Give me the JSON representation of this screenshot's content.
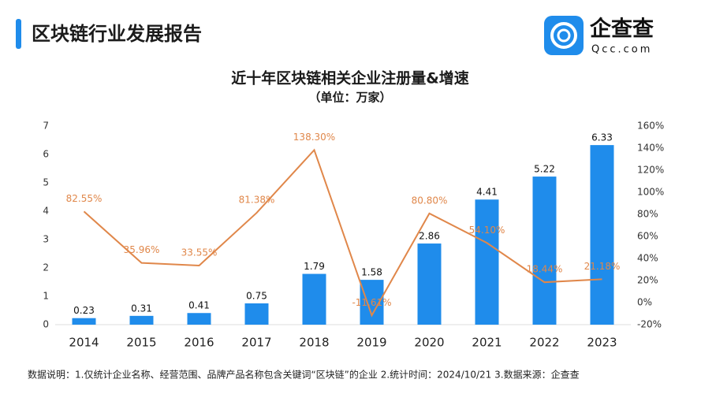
{
  "header": {
    "title": "区块链行业发展报告"
  },
  "logo": {
    "name": "企查查",
    "url": "Qcc.com"
  },
  "chart_data": {
    "type": "bar",
    "title": "近十年区块链相关企业注册量&增速",
    "subtitle": "（单位：万家）",
    "categories": [
      "2014",
      "2015",
      "2016",
      "2017",
      "2018",
      "2019",
      "2020",
      "2021",
      "2022",
      "2023"
    ],
    "series": [
      {
        "type": "bar",
        "color": "#1f8ceb",
        "values": [
          0.23,
          0.31,
          0.41,
          0.75,
          1.79,
          1.58,
          2.86,
          4.41,
          5.22,
          6.33
        ]
      },
      {
        "type": "line",
        "axis": "y2",
        "color": "#e0874a",
        "values": [
          82.55,
          35.96,
          33.55,
          81.38,
          138.3,
          -11.61,
          80.8,
          54.1,
          18.44,
          21.18
        ],
        "value_labels": [
          "82.55%",
          "35.96%",
          "33.55%",
          "81.38%",
          "138.30%",
          "-11.61%",
          "80.80%",
          "54.10%",
          "18.44%",
          "21.18%"
        ]
      }
    ],
    "ylim": [
      0,
      7
    ],
    "yticks": [
      0,
      1,
      2,
      3,
      4,
      5,
      6,
      7
    ],
    "y2lim": [
      -20,
      160
    ],
    "y2ticks": [
      {
        "value": -20,
        "label": "-20%"
      },
      {
        "value": 0,
        "label": "0%"
      },
      {
        "value": 20,
        "label": "20%"
      },
      {
        "value": 40,
        "label": "40%"
      },
      {
        "value": 60,
        "label": "60%"
      },
      {
        "value": 80,
        "label": "80%"
      },
      {
        "value": 100,
        "label": "100%"
      },
      {
        "value": 120,
        "label": "120%"
      },
      {
        "value": 140,
        "label": "140%"
      },
      {
        "value": 160,
        "label": "160%"
      }
    ],
    "grid": false
  },
  "footer": {
    "note": "数据说明：1.仅统计企业名称、经营范围、品牌产品名称包含关键词“区块链”的企业   2.统计时间：2024/10/21   3.数据来源：企查查"
  }
}
